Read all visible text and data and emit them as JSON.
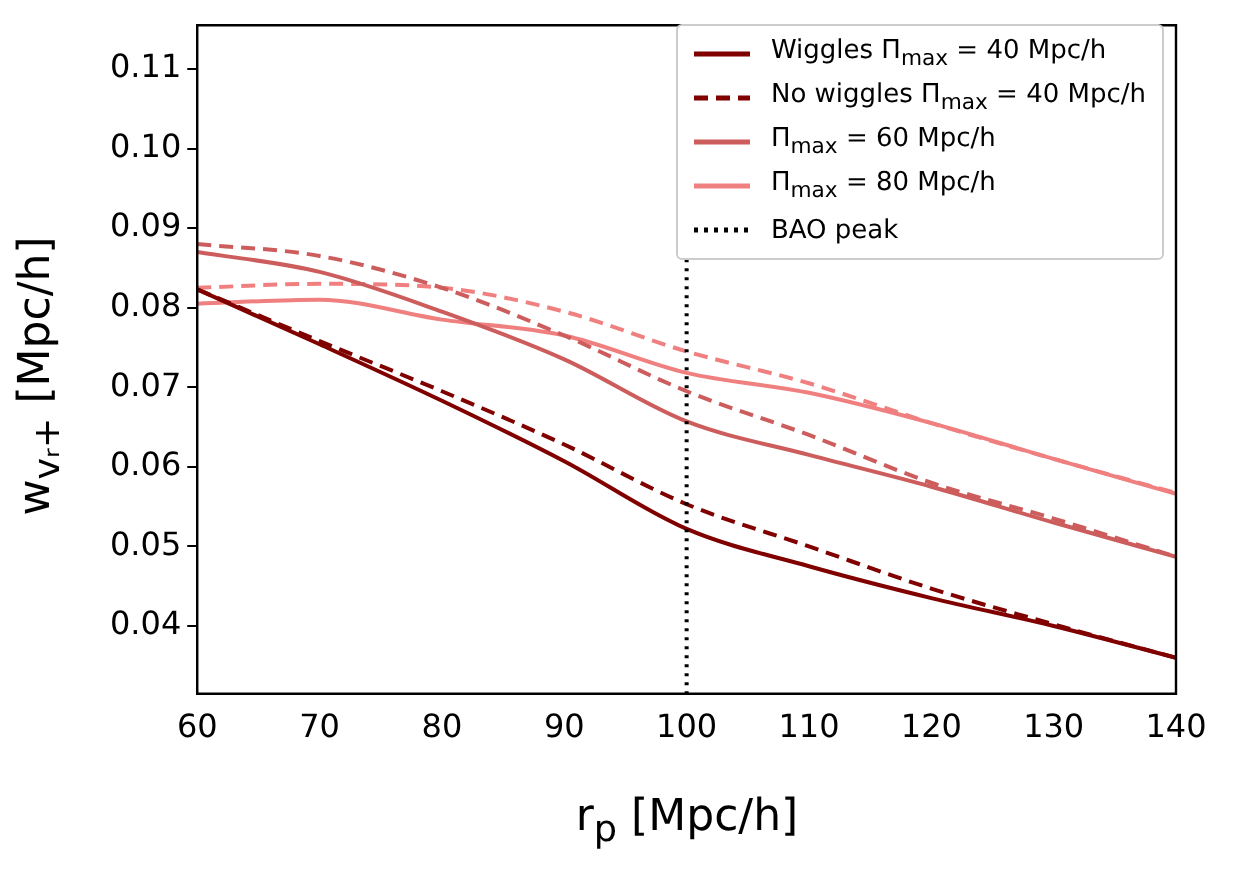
{
  "chart_data": {
    "type": "line",
    "xlabel": "r$_{p}$ [Mpc/h]",
    "ylabel": "w$_{vᵣ+}$ [Mpc/h]",
    "x": [
      60,
      70,
      80,
      90,
      100,
      110,
      120,
      130,
      140
    ],
    "series": [
      {
        "name": "Wiggles Π$_{max}$ = 40 Mpc/h",
        "color": "#800000",
        "line_style": "solid",
        "values": [
          0.0823,
          0.0754,
          0.0683,
          0.0607,
          0.0522,
          0.0475,
          0.0435,
          0.04,
          0.036
        ]
      },
      {
        "name": "No wiggles Π$_{max}$ = 40 Mpc/h",
        "color": "#800000",
        "line_style": "dashed",
        "values": [
          0.0823,
          0.0758,
          0.0695,
          0.0628,
          0.0553,
          0.05,
          0.0447,
          0.0402,
          0.036
        ]
      },
      {
        "name": "Π$_{max}$ = 60 Mpc/h",
        "color": "#cd5c5c",
        "line_style": "solid",
        "values": [
          0.087,
          0.0845,
          0.0795,
          0.0735,
          0.0657,
          0.0615,
          0.0575,
          0.053,
          0.0487
        ]
      },
      {
        "color": "#cd5c5c",
        "line_style": "dashed",
        "values": [
          0.088,
          0.0865,
          0.0825,
          0.0765,
          0.0695,
          0.064,
          0.058,
          0.0535,
          0.0487
        ]
      },
      {
        "name": "Π$_{max}$ = 80 Mpc/h",
        "color": "#f08080",
        "line_style": "solid",
        "values": [
          0.0805,
          0.081,
          0.0785,
          0.0765,
          0.0718,
          0.0693,
          0.0655,
          0.061,
          0.0566
        ]
      },
      {
        "color": "#f08080",
        "line_style": "dashed",
        "values": [
          0.0825,
          0.083,
          0.0825,
          0.0795,
          0.0745,
          0.0705,
          0.0655,
          0.061,
          0.0567
        ]
      }
    ],
    "ref_lines": [
      {
        "axis": "x",
        "value": 100,
        "label": "BAO peak",
        "color": "#000000",
        "line_style": "dotted"
      }
    ],
    "xlim": [
      60,
      140
    ],
    "xticks": [
      60,
      70,
      80,
      90,
      100,
      110,
      120,
      130,
      140
    ],
    "ylim": [
      0.0315,
      0.1155
    ],
    "yticks": [
      {
        "value": 0.04,
        "label": "0.04"
      },
      {
        "value": 0.05,
        "label": "0.05"
      },
      {
        "value": 0.06,
        "label": "0.06"
      },
      {
        "value": 0.07,
        "label": "0.07"
      },
      {
        "value": 0.08,
        "label": "0.08"
      },
      {
        "value": 0.09,
        "label": "0.09"
      },
      {
        "value": 0.1,
        "label": "0.10"
      },
      {
        "value": 0.11,
        "label": "0.11"
      }
    ],
    "grid": false,
    "legend": "top right",
    "marker": "none"
  }
}
